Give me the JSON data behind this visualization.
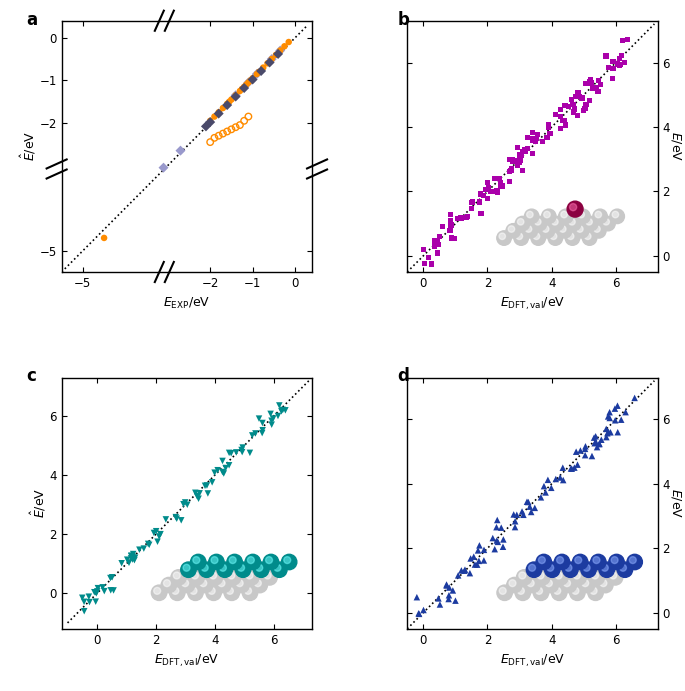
{
  "panel_a": {
    "label": "a",
    "xlabel": "$E_{\\mathrm{EXP}}$/eV",
    "ylabel": "$\\hat{E}$/eV",
    "orange_filled_x": [
      -0.15,
      -0.25,
      -0.35,
      -0.45,
      -0.55,
      -0.65,
      -0.75,
      -0.85,
      -0.9,
      -1.0,
      -1.05,
      -1.1,
      -1.15,
      -1.2,
      -1.25,
      -1.3,
      -1.4,
      -1.5,
      -1.55,
      -1.6,
      -1.7,
      -1.8,
      -1.9,
      -2.0,
      -4.5
    ],
    "orange_filled_y": [
      -0.1,
      -0.2,
      -0.3,
      -0.4,
      -0.5,
      -0.6,
      -0.7,
      -0.8,
      -0.85,
      -0.95,
      -1.0,
      -1.05,
      -1.1,
      -1.15,
      -1.2,
      -1.25,
      -1.35,
      -1.45,
      -1.5,
      -1.55,
      -1.65,
      -1.75,
      -1.85,
      -1.95,
      -4.7
    ],
    "orange_open_x": [
      -1.1,
      -1.2,
      -1.3,
      -1.4,
      -1.5,
      -1.6,
      -1.7,
      -1.8,
      -1.9,
      -2.0
    ],
    "orange_open_y": [
      -1.85,
      -1.95,
      -2.05,
      -2.1,
      -2.15,
      -2.2,
      -2.25,
      -2.3,
      -2.35,
      -2.45
    ],
    "dark_diamond_x": [
      -0.4,
      -0.6,
      -0.8,
      -1.0,
      -1.2,
      -1.4,
      -1.6,
      -1.8,
      -2.0,
      -2.1
    ],
    "dark_diamond_y": [
      -0.38,
      -0.58,
      -0.78,
      -0.98,
      -1.18,
      -1.38,
      -1.58,
      -1.78,
      -1.98,
      -2.08
    ],
    "light_diamond_x": [
      -0.35,
      -0.55,
      -0.9,
      -1.1,
      -1.4,
      -2.7,
      -3.1
    ],
    "light_diamond_y": [
      -0.3,
      -0.5,
      -0.85,
      -1.05,
      -1.35,
      -2.65,
      -3.05
    ],
    "orange_color": "#FF8C00",
    "dark_diamond_color": "#4a4a6a",
    "light_diamond_color": "#9999cc"
  },
  "panel_b": {
    "label": "b",
    "xlabel": "$E_{\\mathrm{DFT,val}}$/eV",
    "ylabel": "$\\hat{E}$/eV",
    "purple_color": "#AA00AA",
    "scatter_seed": 7,
    "n_points": 120,
    "x_min": 0.0,
    "x_max": 6.5,
    "noise_std": 0.25
  },
  "panel_c": {
    "label": "c",
    "xlabel": "$E_{\\mathrm{DFT,val}}$/eV",
    "ylabel": "$\\hat{E}$/eV",
    "teal_color": "#008B8B",
    "scatter_seed": 13,
    "n_points": 80,
    "x_min": -0.5,
    "x_max": 6.5,
    "noise_std": 0.2
  },
  "panel_d": {
    "label": "d",
    "xlabel": "$E_{\\mathrm{DFT,val}}$/eV",
    "ylabel": "$\\hat{E}$/eV",
    "blue_color": "#1C3BA0",
    "scatter_seed": 21,
    "n_points": 90,
    "x_min": -0.5,
    "x_max": 6.8,
    "noise_std": 0.22
  },
  "gray_sphere_color": "#c8c8c8",
  "gray_sphere_edge": "#a0a0a0",
  "teal_sphere_color": "#008B8B",
  "blue_sphere_color": "#1C3BA0",
  "red_sphere_color": "#8B0040"
}
